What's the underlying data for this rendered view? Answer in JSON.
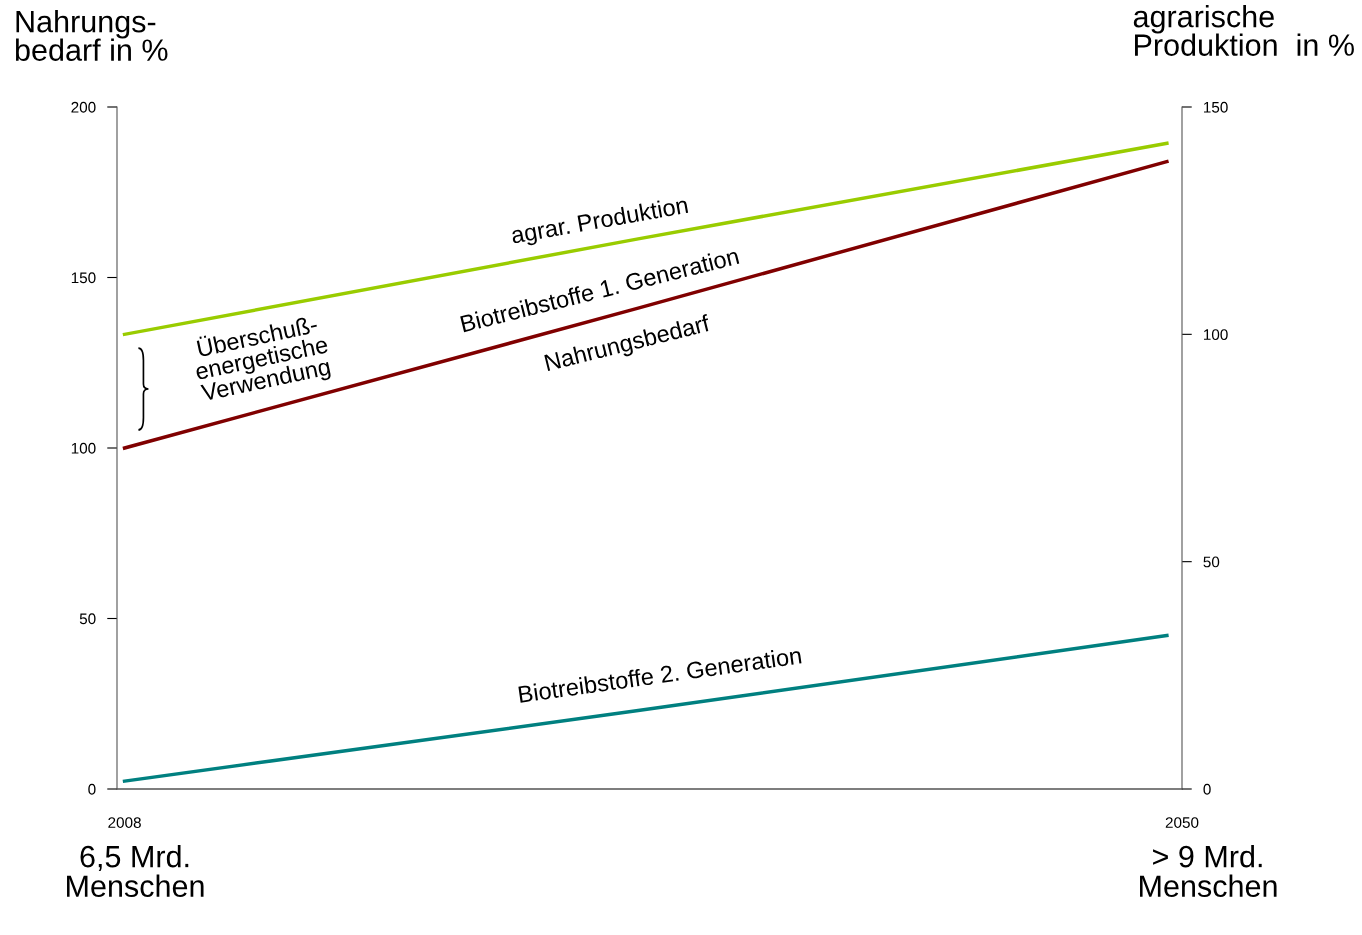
{
  "chart_data": {
    "type": "line",
    "ylabel": "Nahrungs-\nbedarf in %",
    "y2label": "agrarische\nProduktion  in %",
    "x": [
      2008,
      2028.4,
      2049.4
    ],
    "series": [
      {
        "color": "#99cc00",
        "axis": "y2",
        "values": [
          100,
          121,
          142
        ]
      },
      {
        "color": "#800000",
        "values": [
          100,
          141,
          184
        ]
      },
      {
        "color": "#008080",
        "values": [
          2.3,
          23,
          45
        ]
      }
    ],
    "xlim": [
      2007.7,
      2050
    ],
    "xticks": [
      2008,
      2050
    ],
    "ylim": [
      0,
      200
    ],
    "yticks": [
      0,
      50,
      100,
      150,
      200
    ],
    "y2lim": [
      0,
      150
    ],
    "y2ticks": [
      0,
      50,
      100,
      150
    ],
    "grid": false,
    "marker": "none",
    "line_style": "solid",
    "annotations": [
      "agrar. Produktion",
      "Biotreibstoffe 1. Generation",
      "Nahrungsbedarf",
      "Biotreibstoffe 2. Generation",
      "Überschuß-\nenergetische\nVerwendung",
      "6,5 Mrd.\nMenschen",
      "> 9 Mrd.\nMenschen"
    ]
  }
}
